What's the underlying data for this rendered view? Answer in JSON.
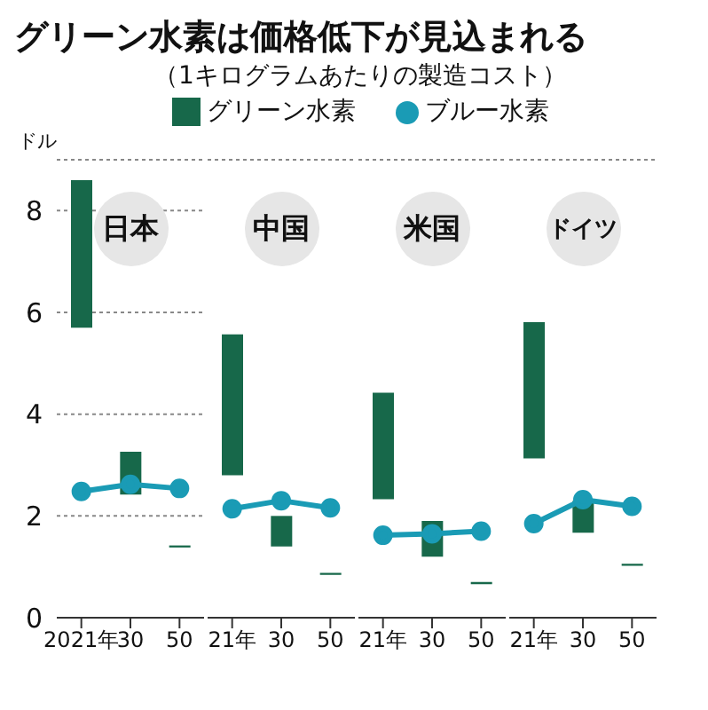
{
  "chart_data": [
    {
      "type": "bar",
      "title": "グリーン水素は価格低下が見込まれる",
      "subtitle": "（1キログラムあたりの製造コスト）",
      "ylabel": "ドル",
      "legend": "top",
      "grid": "y",
      "annotations": [
        "日本"
      ],
      "categories": [
        "2021年",
        "30",
        "50"
      ],
      "ylim": [
        0,
        9
      ],
      "yticks": [
        0,
        2,
        4,
        6,
        8
      ],
      "series": [
        {
          "name": "グリーン水素",
          "color": "#17684a",
          "base": [
            5.7,
            2.42,
            1.38
          ],
          "values": [
            2.9,
            0.84,
            0.04
          ]
        },
        {
          "name": "ブルー水素",
          "type": "line",
          "color": "#1a9bb5",
          "marker": "circle",
          "values": [
            2.48,
            2.62,
            2.54
          ]
        }
      ]
    },
    {
      "type": "bar",
      "grid": "y",
      "tick_labels": "x",
      "annotations": [
        "中国"
      ],
      "categories": [
        "21年",
        "30",
        "50"
      ],
      "ylim": [
        0,
        9
      ],
      "yticks": [
        0,
        2,
        4,
        6,
        8
      ],
      "series": [
        {
          "color": "#17684a",
          "base": [
            2.8,
            1.4,
            0.84
          ],
          "values": [
            2.77,
            0.6,
            0.04
          ]
        },
        {
          "type": "line",
          "color": "#1a9bb5",
          "marker": "circle",
          "values": [
            2.14,
            2.3,
            2.16
          ]
        }
      ]
    },
    {
      "type": "bar",
      "grid": "y",
      "tick_labels": "x",
      "annotations": [
        "米国"
      ],
      "categories": [
        "21年",
        "30",
        "50"
      ],
      "ylim": [
        0,
        9
      ],
      "yticks": [
        0,
        2,
        4,
        6,
        8
      ],
      "series": [
        {
          "color": "#17684a",
          "base": [
            2.33,
            1.2,
            0.66
          ],
          "values": [
            2.09,
            0.7,
            0.04
          ]
        },
        {
          "type": "line",
          "color": "#1a9bb5",
          "marker": "circle",
          "values": [
            1.62,
            1.65,
            1.7
          ]
        }
      ]
    },
    {
      "type": "bar",
      "grid": "y",
      "tick_labels": "x",
      "annotations": [
        "ドイツ"
      ],
      "categories": [
        "21年",
        "30",
        "50"
      ],
      "ylim": [
        0,
        9
      ],
      "yticks": [
        0,
        2,
        4,
        6,
        8
      ],
      "series": [
        {
          "color": "#17684a",
          "base": [
            3.13,
            1.67,
            1.02
          ],
          "values": [
            2.68,
            0.63,
            0.04
          ]
        },
        {
          "type": "line",
          "color": "#1a9bb5",
          "marker": "circle",
          "values": [
            1.85,
            2.32,
            2.19
          ]
        }
      ]
    }
  ]
}
